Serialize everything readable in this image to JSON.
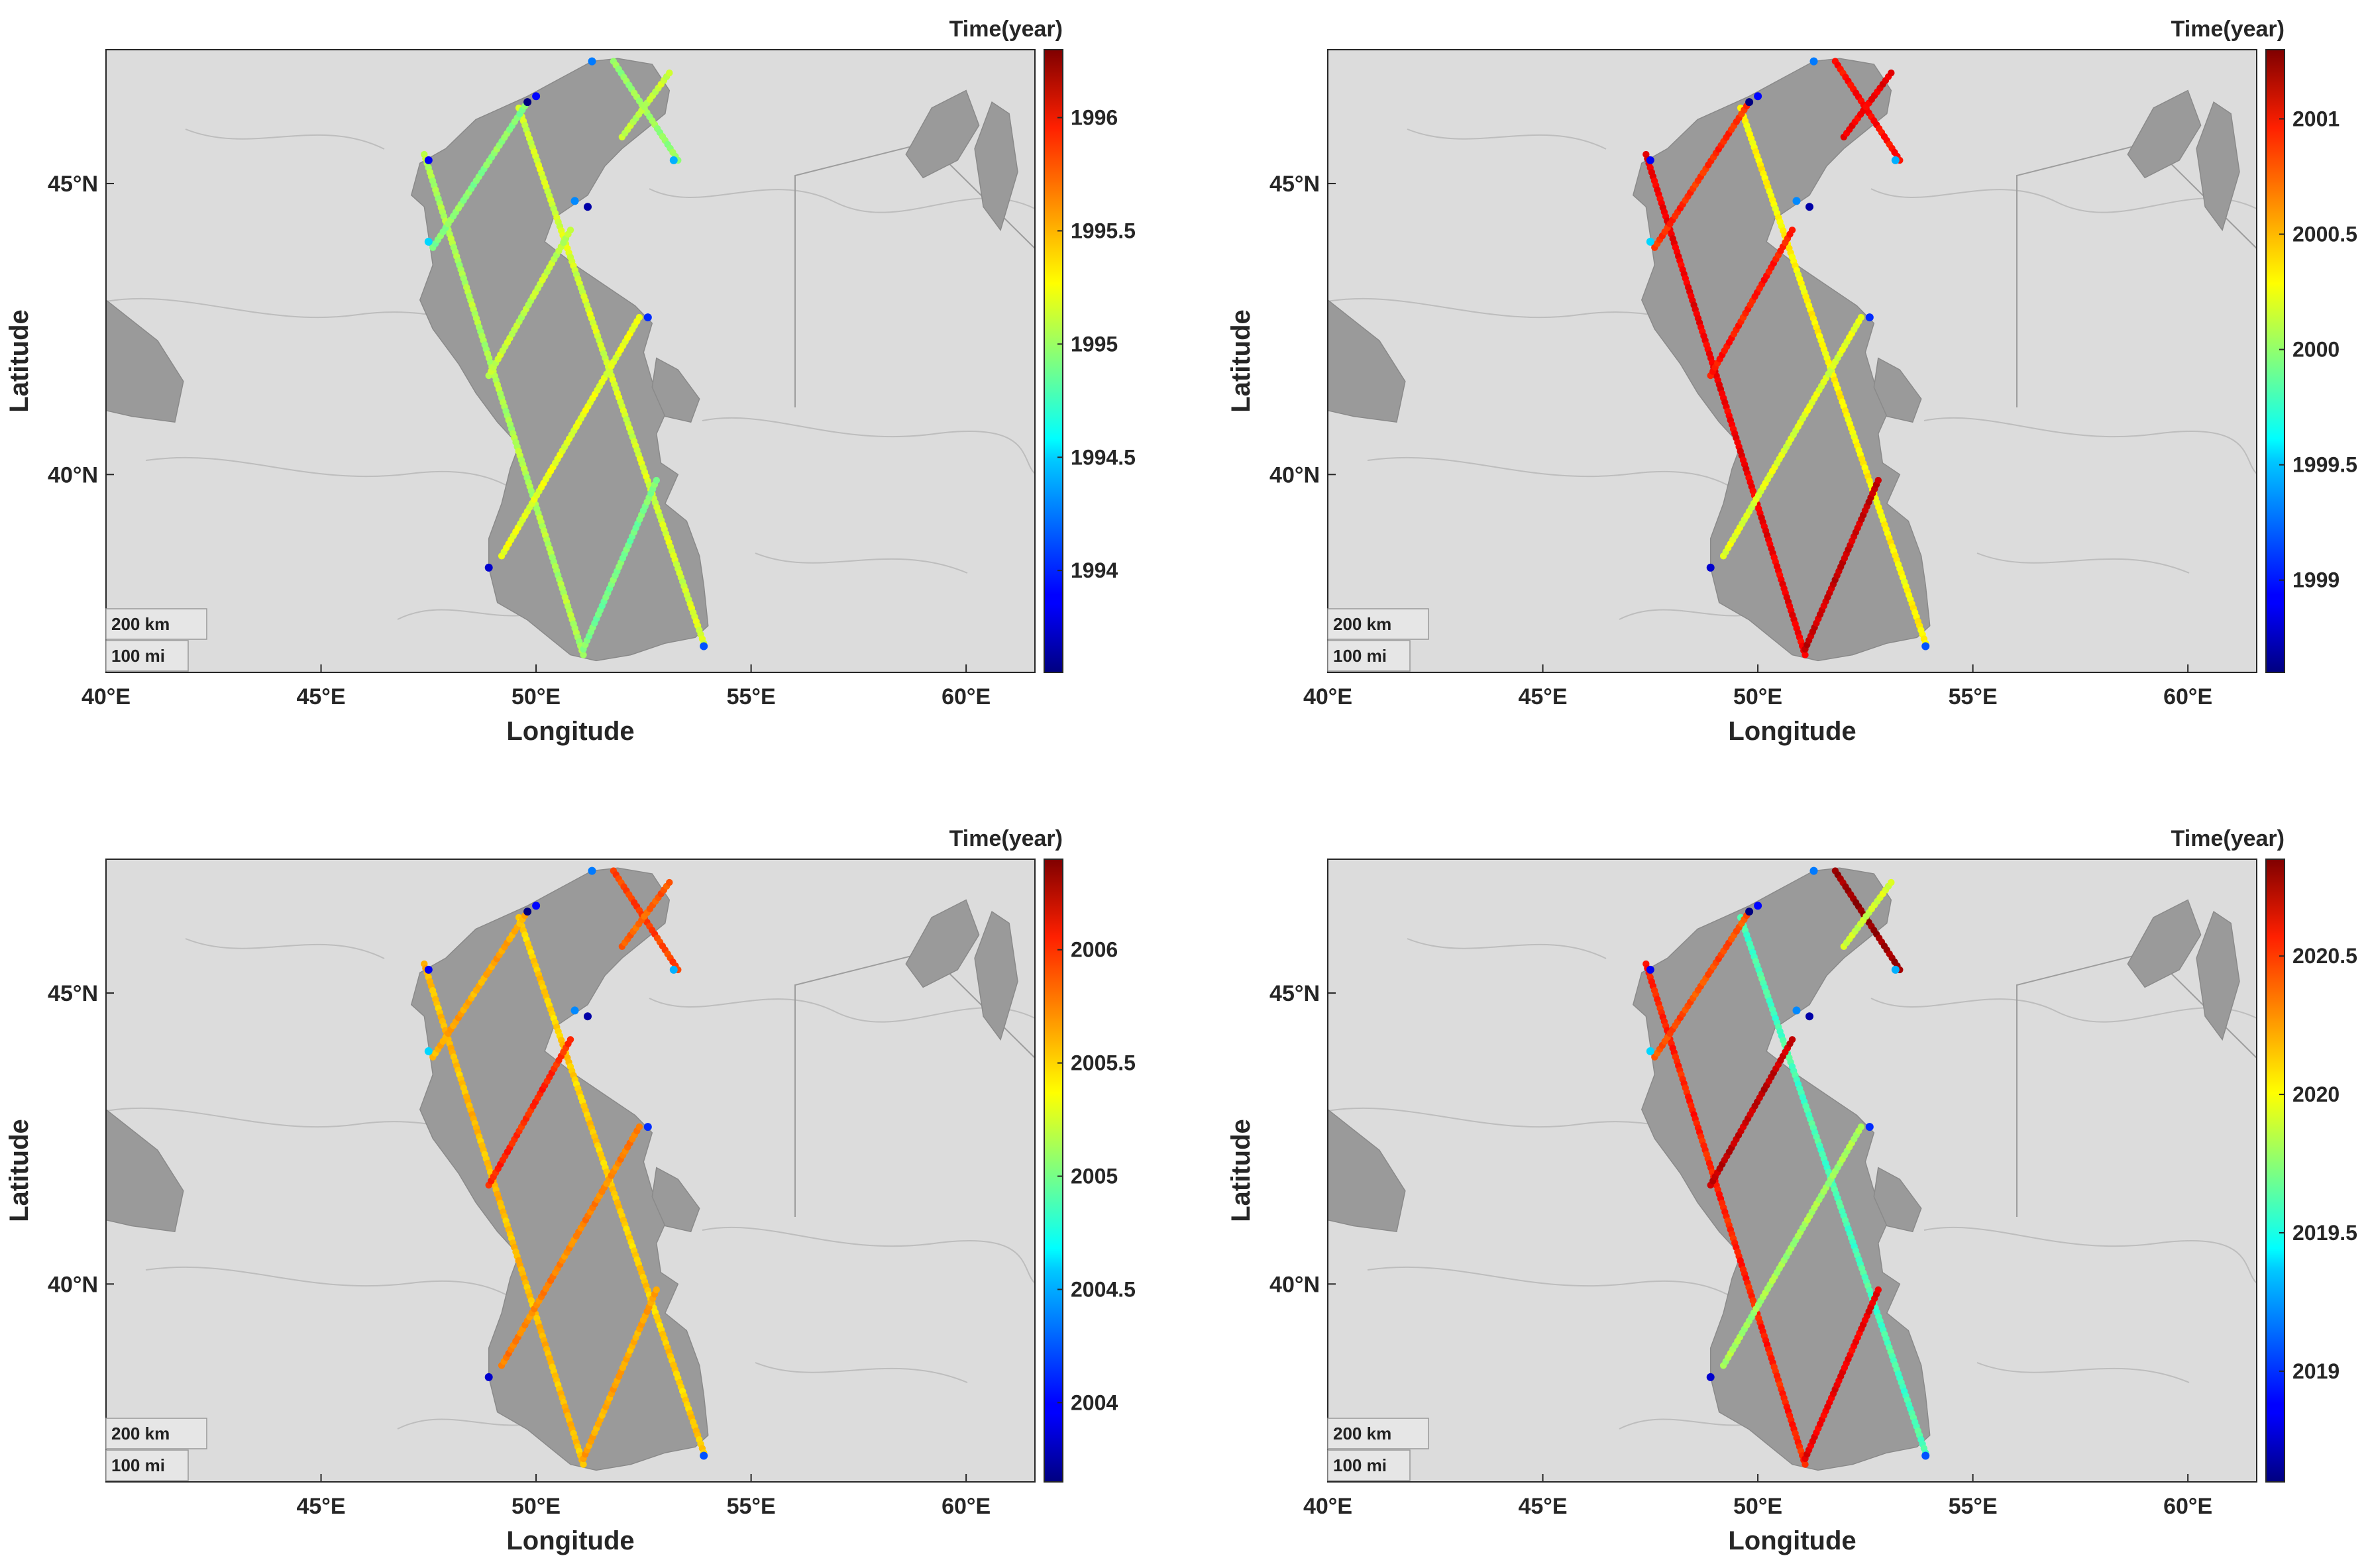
{
  "panels": [
    {
      "id": "a",
      "colorbar": {
        "title": "Time(year)",
        "min": 1993.55,
        "max": 1996.3,
        "ticks": [
          "1994",
          "1994.5",
          "1995",
          "1995.5",
          "1996"
        ],
        "tick_values": [
          1994,
          1994.5,
          1995,
          1995.5,
          1996
        ]
      },
      "xlabel": "Longitude",
      "ylabel": "Latitude",
      "xticks": [
        "40°E",
        "45°E",
        "50°E",
        "55°E",
        "60°E"
      ],
      "yticks": [
        "45°N",
        "40°N"
      ],
      "scale": [
        "200 km",
        "100 mi"
      ],
      "track_values": [
        1995.05,
        1995.15,
        1995.0,
        1994.95,
        1995.1,
        1995.2,
        1994.9,
        1995.1
      ]
    },
    {
      "id": "b",
      "colorbar": {
        "title": "Time(year)",
        "min": 1998.6,
        "max": 2001.3,
        "ticks": [
          "1999",
          "1999.5",
          "2000",
          "2000.5",
          "2001"
        ],
        "tick_values": [
          1999,
          1999.5,
          2000,
          2000.5,
          2001
        ]
      },
      "xlabel": "Longitude",
      "ylabel": "Latitude",
      "xticks": [
        "40°E",
        "45°E",
        "50°E",
        "55°E",
        "60°E"
      ],
      "yticks": [
        "45°N",
        "40°N"
      ],
      "scale": [
        "200 km",
        "100 mi"
      ],
      "track_values": [
        2001.0,
        2000.3,
        2000.95,
        2000.85,
        2000.9,
        2000.2,
        2001.1,
        2001.0
      ]
    },
    {
      "id": "c",
      "colorbar": {
        "title": "Time(year)",
        "min": 2003.65,
        "max": 2006.4,
        "ticks": [
          "2004",
          "2004.5",
          "2005",
          "2005.5",
          "2006"
        ],
        "tick_values": [
          2004,
          2004.5,
          2005,
          2005.5,
          2006
        ]
      },
      "xlabel": "Longitude",
      "ylabel": "Latitude",
      "xticks": [
        "45°E",
        "50°E",
        "55°E",
        "60°E"
      ],
      "yticks": [
        "45°N",
        "40°N"
      ],
      "scale": [
        "200 km",
        "100 mi"
      ],
      "track_values": [
        2005.55,
        2005.5,
        2005.9,
        2005.6,
        2005.95,
        2005.7,
        2005.6,
        2005.8
      ]
    },
    {
      "id": "d",
      "colorbar": {
        "title": "Time(year)",
        "min": 2018.6,
        "max": 2020.85,
        "ticks": [
          "2019",
          "2019.5",
          "2020",
          "2020.5"
        ],
        "tick_values": [
          2019,
          2019.5,
          2020,
          2020.5
        ]
      },
      "xlabel": "Longitude",
      "ylabel": "Latitude",
      "xticks": [
        "40°E",
        "45°E",
        "50°E",
        "55°E",
        "60°E"
      ],
      "yticks": [
        "45°N",
        "40°N"
      ],
      "scale": [
        "200 km",
        "100 mi"
      ],
      "track_values": [
        2020.5,
        2019.6,
        2020.8,
        2020.4,
        2020.7,
        2019.8,
        2020.6,
        2019.9
      ]
    }
  ],
  "colors": {
    "land": "#dcdcdc",
    "water": "#9a9a9a",
    "border": "#bdbdbd",
    "axis": "#262626"
  },
  "colormap": "jet"
}
